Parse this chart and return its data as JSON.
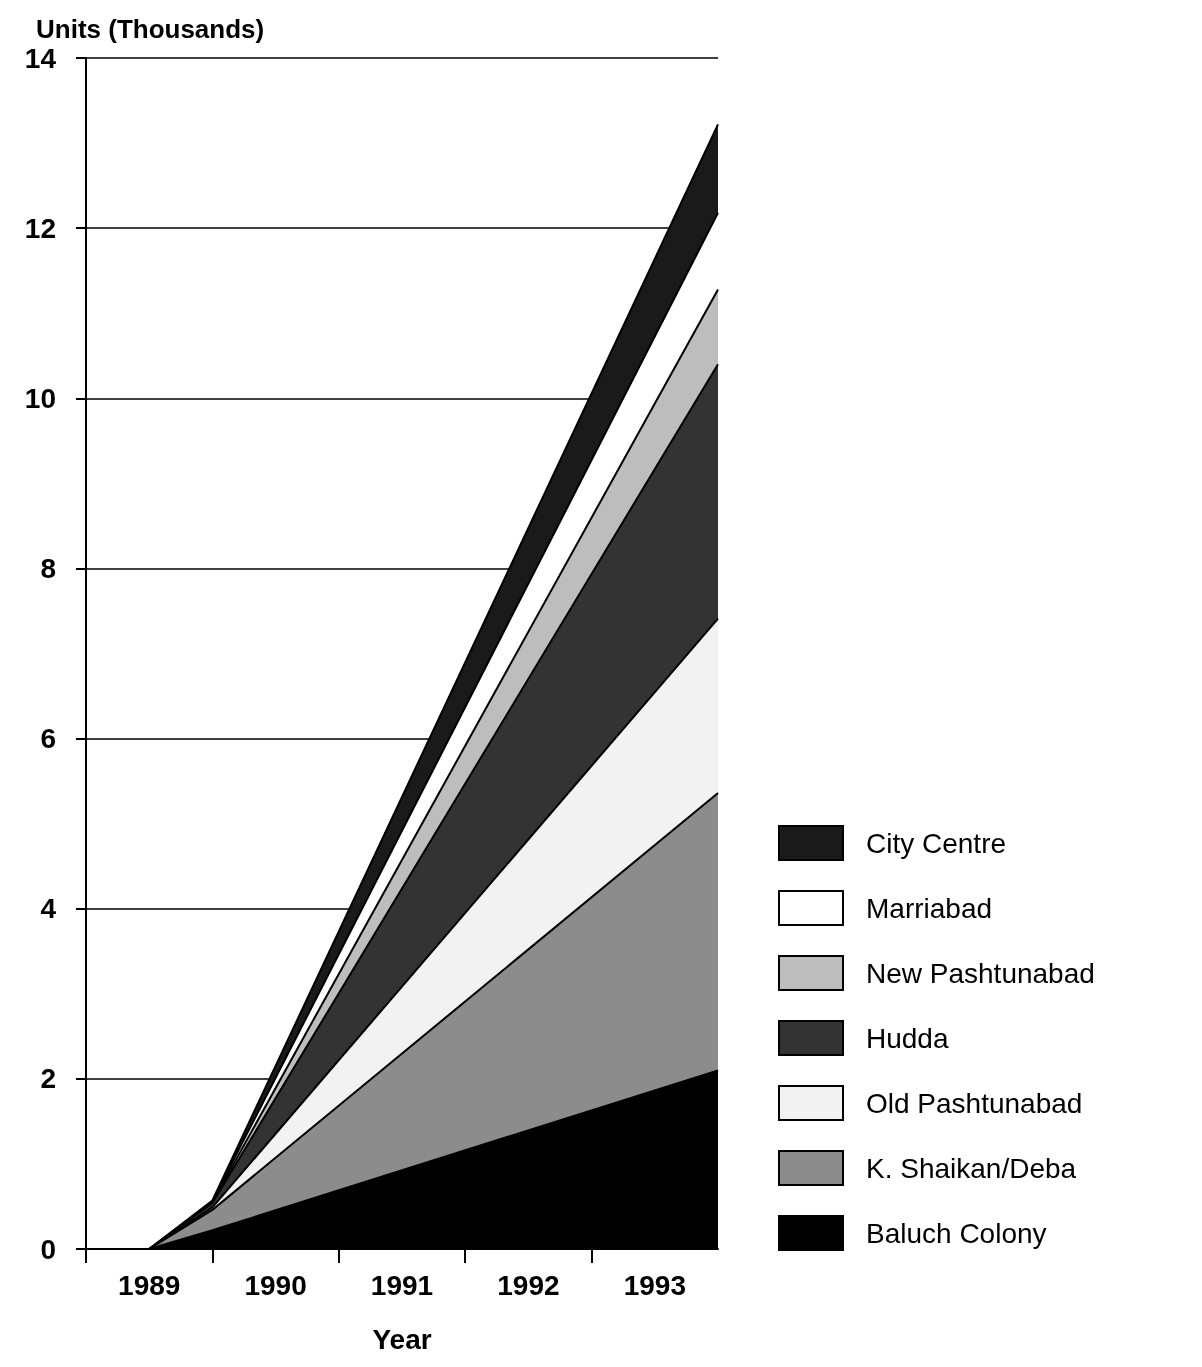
{
  "chart_data": {
    "type": "area",
    "ylabel": "Units (Thousands)",
    "xlabel": "Year",
    "stacked": true,
    "x": [
      1989.5,
      1990,
      1994
    ],
    "series": [
      {
        "name": "Baluch Colony",
        "color": "#000000",
        "values": [
          0,
          0.22,
          2.1
        ]
      },
      {
        "name": "K. Shaikan/Deba",
        "color": "#8c8c8c",
        "values": [
          0,
          0.24,
          3.26
        ]
      },
      {
        "name": "Old Pashtunabad",
        "color": "#f2f2f2",
        "values": [
          0,
          0.03,
          2.05
        ]
      },
      {
        "name": "Hudda",
        "color": "#333333",
        "values": [
          0,
          0.05,
          2.99
        ]
      },
      {
        "name": "New Pashtunabad",
        "color": "#bdbdbd",
        "values": [
          0,
          0.01,
          0.88
        ]
      },
      {
        "name": "Marriabad",
        "color": "#ffffff",
        "values": [
          0,
          0.01,
          0.9
        ]
      },
      {
        "name": "City Centre",
        "color": "#1a1a1a",
        "values": [
          0,
          0.01,
          1.04
        ]
      }
    ],
    "xlim": [
      1989,
      1994
    ],
    "xticks": [
      {
        "value": 1989,
        "label": null
      },
      {
        "value": 1989.5,
        "label": "1989"
      },
      {
        "value": 1990,
        "label": null
      },
      {
        "value": 1990.5,
        "label": "1990"
      },
      {
        "value": 1991,
        "label": null
      },
      {
        "value": 1991.5,
        "label": "1991"
      },
      {
        "value": 1992,
        "label": null
      },
      {
        "value": 1992.5,
        "label": "1992"
      },
      {
        "value": 1993,
        "label": null
      },
      {
        "value": 1993.5,
        "label": "1993"
      }
    ],
    "ylim": [
      0,
      14
    ],
    "yticks": [
      0,
      2,
      4,
      6,
      8,
      10,
      12,
      14
    ],
    "grid": "y",
    "legend": "bottom right"
  }
}
